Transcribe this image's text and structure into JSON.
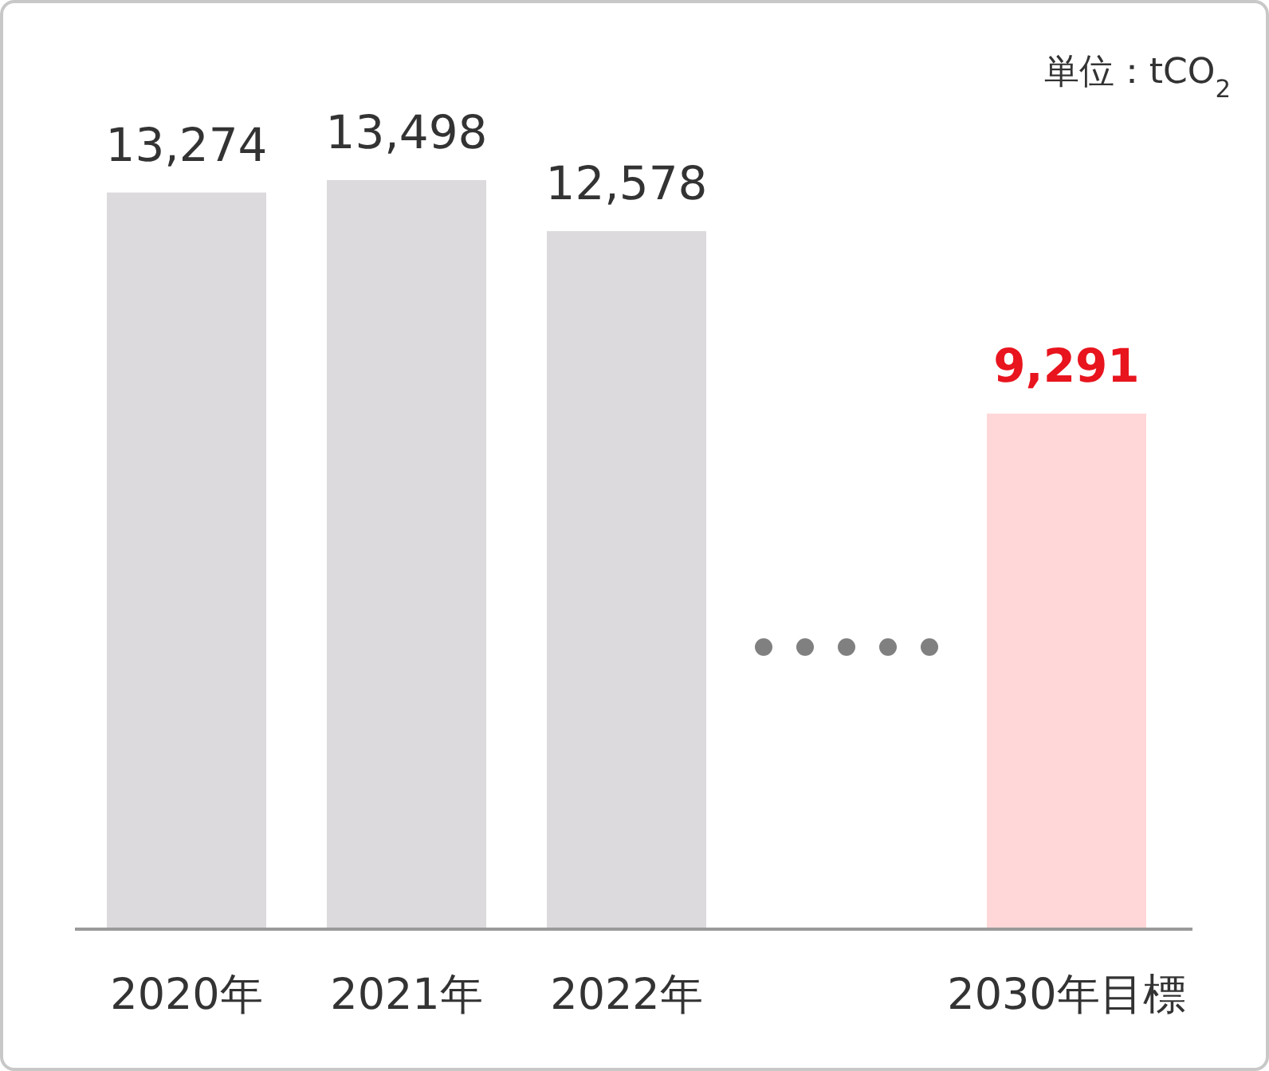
{
  "chart_data": {
    "type": "bar",
    "categories": [
      "2020年",
      "2021年",
      "2022年",
      null,
      "2030年目標"
    ],
    "values": [
      13274,
      13498,
      12578,
      null,
      9291
    ],
    "colors": [
      "#dcdadd",
      "#dcdadd",
      "#dcdadd",
      null,
      "#ffd7d9"
    ],
    "value_labels": [
      "13,274",
      "13,498",
      "12,578",
      null,
      "**9,291**"
    ],
    "annotations": [
      "単位：tCO$_{2}$"
    ]
  }
}
